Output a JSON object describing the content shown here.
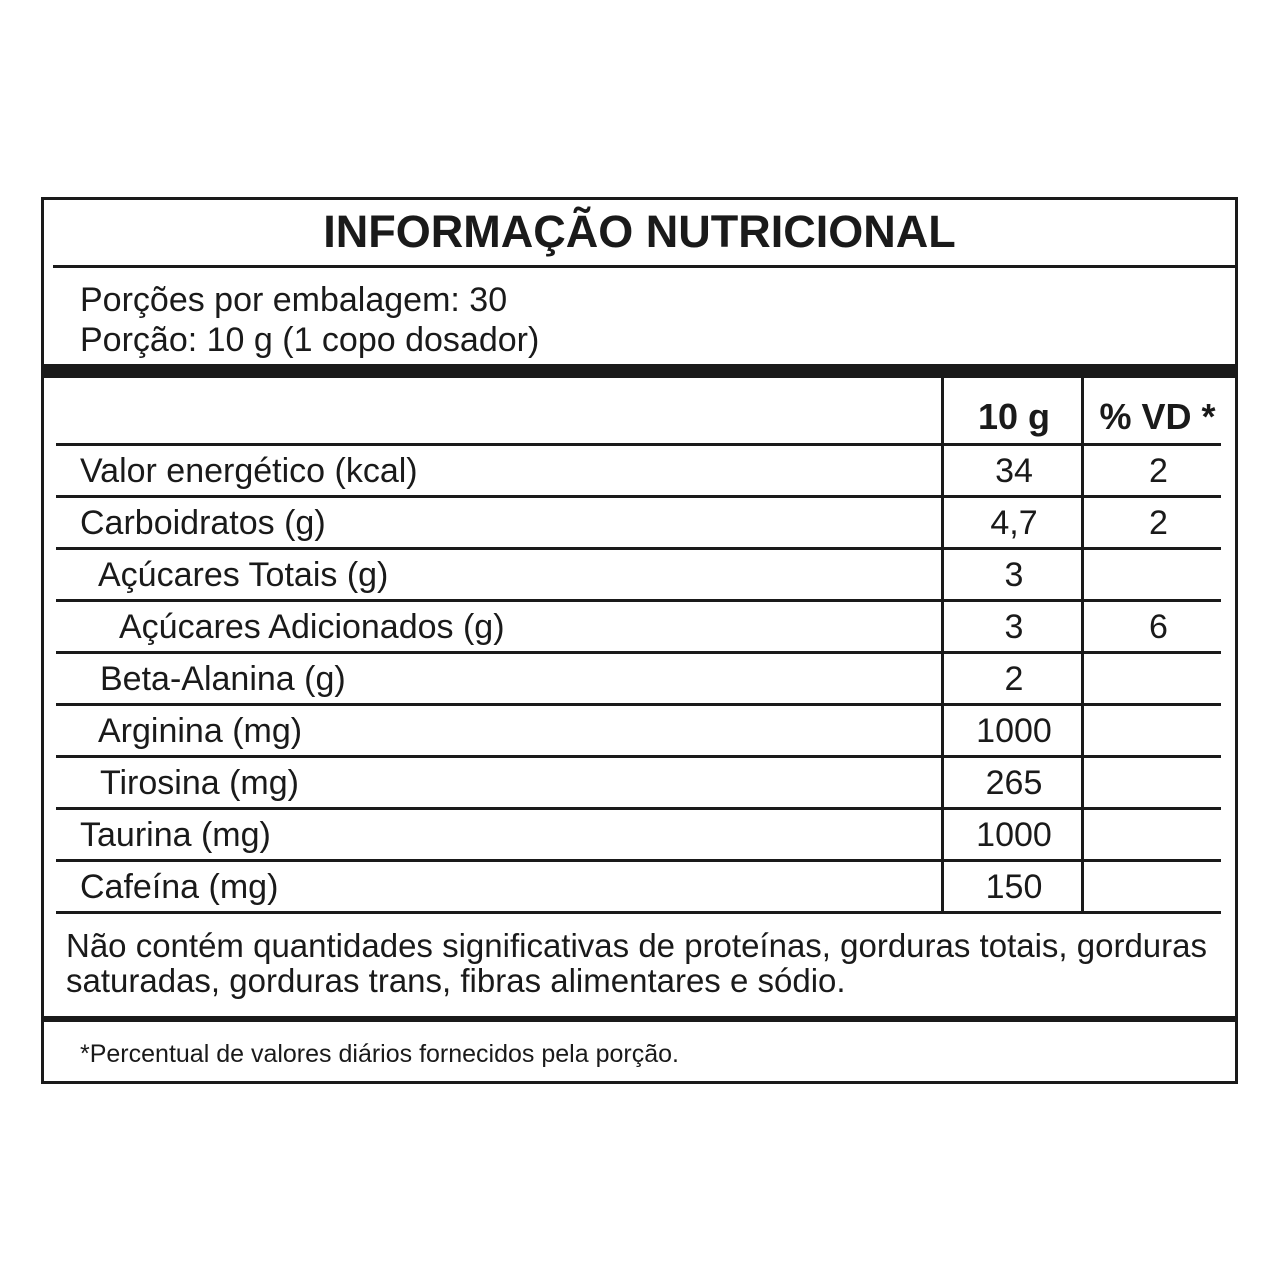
{
  "title": "INFORMAÇÃO NUTRICIONAL",
  "servings_per_package": "Porções por embalagem: 30",
  "serving_size": "Porção: 10 g (1 copo dosador)",
  "columns": {
    "amount": "10 g",
    "daily_value": "% VD *"
  },
  "rows": [
    {
      "label": "Valor energético (kcal)",
      "amount": "34",
      "vd": "2"
    },
    {
      "label": "Carboidratos (g)",
      "amount": "4,7",
      "vd": "2"
    },
    {
      "label": "Açúcares Totais (g)",
      "amount": "3",
      "vd": ""
    },
    {
      "label": "Açúcares Adicionados (g)",
      "amount": "3",
      "vd": "6"
    },
    {
      "label": "Beta-Alanina (g)",
      "amount": "2",
      "vd": ""
    },
    {
      "label": "Arginina (mg)",
      "amount": "1000",
      "vd": ""
    },
    {
      "label": "Tirosina (mg)",
      "amount": "265",
      "vd": ""
    },
    {
      "label": "Taurina (mg)",
      "amount": "1000",
      "vd": ""
    },
    {
      "label": "Cafeína (mg)",
      "amount": "150",
      "vd": ""
    }
  ],
  "note": "Não contém quantidades significativas de proteínas, gorduras totais, gorduras saturadas, gorduras trans, fibras alimentares e sódio.",
  "footnote": "*Percentual de valores diários fornecidos pela porção."
}
